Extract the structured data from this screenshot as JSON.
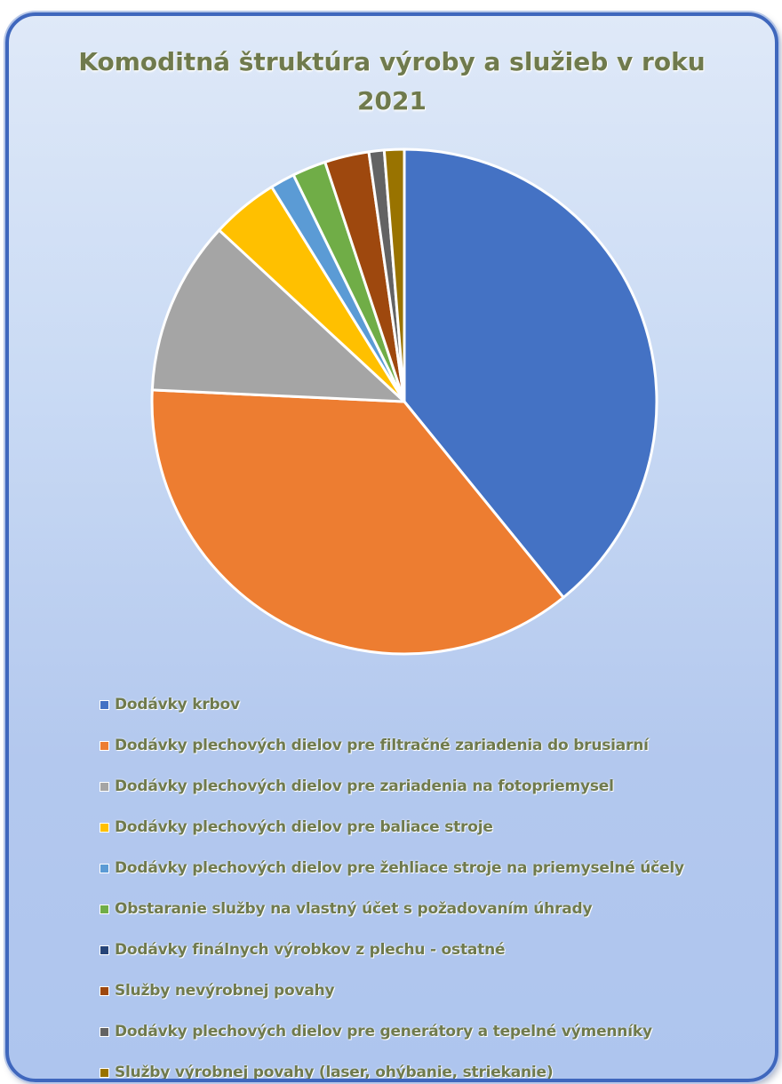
{
  "chart_data": {
    "type": "pie",
    "title": "Komoditná štruktúra výroby a služieb v roku 2021",
    "legend_position": "bottom",
    "slices": [
      {
        "label": "Dodávky krbov",
        "value": 40.0,
        "color": "#4472C4"
      },
      {
        "label": "Dodávky plechových dielov pre filtračné zariadenia do brusiarní",
        "value": 37.4,
        "color": "#ED7D31"
      },
      {
        "label": "Dodávky plechových dielov pre zariadenia na fotopriemysel",
        "value": 11.4,
        "color": "#A5A5A5"
      },
      {
        "label": "Dodávky plechových dielov pre baliace stroje",
        "value": 4.4,
        "color": "#FFC000"
      },
      {
        "label": "Dodávky plechových dielov pre žehliace stroje na priemyselné účely",
        "value": 1.6,
        "color": "#5B9BD5"
      },
      {
        "label": "Obstaranie služby na vlastný účet s požadovaním úhrady",
        "value": 2.2,
        "color": "#70AD47"
      },
      {
        "label": "Dodávky finálnych výrobkov z plechu - ostatné",
        "value": 0.0,
        "color": "#264478"
      },
      {
        "label": "Služby nevýrobnej povahy",
        "value": 2.9,
        "color": "#9E480E"
      },
      {
        "label": "Dodávky plechových dielov pre generátory a tepelné výmenníky",
        "value": 1.0,
        "color": "#636363"
      },
      {
        "label": "Služby výrobnej povahy (laser, ohýbanie, striekanie)",
        "value": 1.3,
        "color": "#997300"
      }
    ]
  }
}
